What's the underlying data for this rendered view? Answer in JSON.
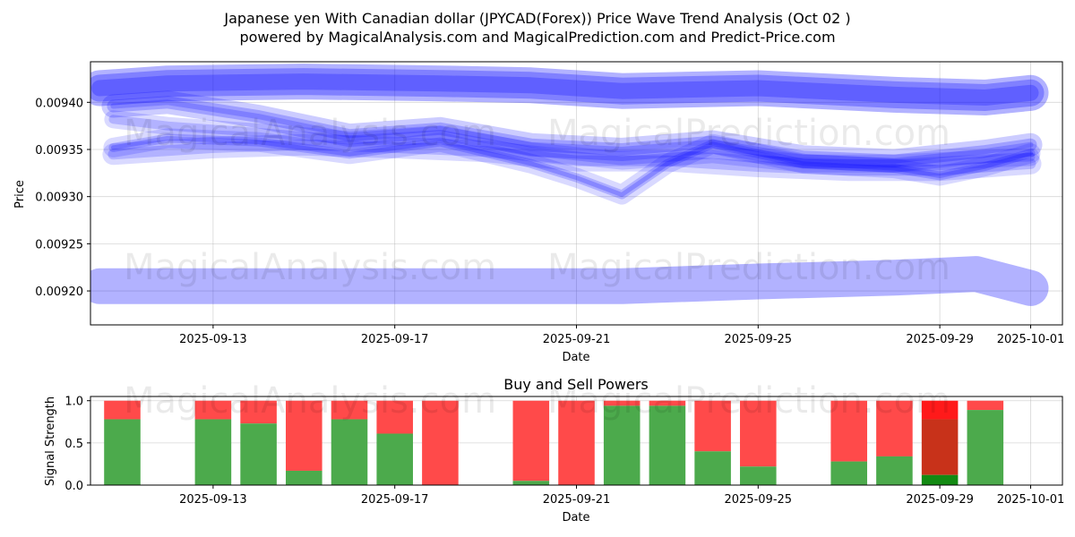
{
  "title_line1": "Japanese yen With Canadian dollar (JPYCAD(Forex)) Price Wave Trend Analysis (Oct 02 )",
  "title_line2": "powered by MagicalAnalysis.com and MagicalPrediction.com and Predict-Price.com",
  "watermarks": [
    "MagicalAnalysis.com",
    "MagicalPrediction.com"
  ],
  "chart_data": [
    {
      "type": "area",
      "xlabel": "Date",
      "ylabel": "Price",
      "xlim": [
        -0.7,
        20.7
      ],
      "ylim": [
        0.009164,
        0.009443
      ],
      "x_tick_labels": [
        {
          "day": 2,
          "label": "2025-09-13"
        },
        {
          "day": 6,
          "label": "2025-09-17"
        },
        {
          "day": 10,
          "label": "2025-09-21"
        },
        {
          "day": 14,
          "label": "2025-09-25"
        },
        {
          "day": 18,
          "label": "2025-09-29"
        },
        {
          "day": 20,
          "label": "2025-10-01"
        }
      ],
      "y_ticks": [
        {
          "value": 0.0092,
          "label": "0.00920"
        },
        {
          "value": 0.00925,
          "label": "0.00925"
        },
        {
          "value": 0.0093,
          "label": "0.00930"
        },
        {
          "value": 0.00935,
          "label": "0.00935"
        },
        {
          "value": 0.0094,
          "label": "0.00940"
        }
      ],
      "grid": true,
      "color": "#0000ff",
      "series": [
        {
          "name": "upper-band",
          "x": [
            -0.5,
            1,
            4,
            7,
            9,
            11,
            14,
            17,
            19,
            20
          ],
          "values": [
            0.009415,
            0.00942,
            0.009422,
            0.00942,
            0.009418,
            0.009412,
            0.009415,
            0.009408,
            0.009405,
            0.00941
          ]
        },
        {
          "name": "wave-1",
          "x": [
            -0.2,
            1,
            3,
            5,
            7,
            9,
            11,
            13,
            15,
            17,
            19,
            20
          ],
          "values": [
            0.009396,
            0.0094,
            0.009385,
            0.009365,
            0.009372,
            0.009355,
            0.00935,
            0.009358,
            0.009342,
            0.009338,
            0.009348,
            0.009355
          ]
        },
        {
          "name": "wave-2",
          "x": [
            -0.2,
            1,
            3,
            5,
            7,
            9,
            10,
            11,
            12,
            13,
            15,
            17,
            18,
            19,
            20
          ],
          "values": [
            0.009352,
            0.009362,
            0.009358,
            0.009345,
            0.009358,
            0.009335,
            0.00932,
            0.009302,
            0.009335,
            0.009356,
            0.009335,
            0.00933,
            0.009322,
            0.009332,
            0.009346
          ]
        },
        {
          "name": "wave-3",
          "x": [
            -0.2,
            1,
            3,
            5,
            7,
            9,
            11,
            13,
            15,
            17,
            19,
            20
          ],
          "values": [
            0.009382,
            0.009375,
            0.009368,
            0.00936,
            0.009366,
            0.009348,
            0.009338,
            0.009345,
            0.009335,
            0.009335,
            0.00934,
            0.009342
          ]
        },
        {
          "name": "wave-4",
          "x": [
            -0.2,
            2,
            4,
            6,
            8,
            10,
            12,
            14,
            16,
            18,
            20
          ],
          "values": [
            0.009345,
            0.009352,
            0.009355,
            0.009352,
            0.009348,
            0.009338,
            0.009338,
            0.009332,
            0.009328,
            0.009328,
            0.009335
          ]
        },
        {
          "name": "lower-band",
          "x": [
            -0.5,
            2,
            5,
            8,
            11,
            14,
            17,
            18.8,
            20
          ],
          "values": [
            0.009205,
            0.009205,
            0.009205,
            0.009205,
            0.009205,
            0.00921,
            0.009214,
            0.009218,
            0.009203
          ]
        }
      ]
    },
    {
      "type": "bar",
      "title": "Buy and Sell Powers",
      "xlabel": "Date",
      "ylabel": "Signal Strength",
      "ylim": [
        0,
        1.05
      ],
      "y_ticks": [
        {
          "value": 0,
          "label": "0.0"
        },
        {
          "value": 0.5,
          "label": "0.5"
        },
        {
          "value": 1,
          "label": "1.0"
        }
      ],
      "x_tick_labels": [
        {
          "day": 2,
          "label": "2025-09-13"
        },
        {
          "day": 6,
          "label": "2025-09-17"
        },
        {
          "day": 10,
          "label": "2025-09-21"
        },
        {
          "day": 14,
          "label": "2025-09-25"
        },
        {
          "day": 18,
          "label": "2025-09-29"
        },
        {
          "day": 20,
          "label": "2025-10-01"
        }
      ],
      "grid": true,
      "buy_color": "#4caa4c",
      "sell_color": "#ff4a4a",
      "highlight_buy_color": "#138a13",
      "highlight_sell_color": "#ff1a1a",
      "highlight_mid_color": "#c8321a",
      "bars": [
        {
          "day": 0,
          "buy": 0.78
        },
        {
          "day": 2,
          "buy": 0.78
        },
        {
          "day": 3,
          "buy": 0.73
        },
        {
          "day": 4,
          "buy": 0.17
        },
        {
          "day": 5,
          "buy": 0.78
        },
        {
          "day": 6,
          "buy": 0.61
        },
        {
          "day": 7,
          "buy": 0.0
        },
        {
          "day": 9,
          "buy": 0.05
        },
        {
          "day": 10,
          "buy": 0.0
        },
        {
          "day": 11,
          "buy": 0.94
        },
        {
          "day": 12,
          "buy": 0.94
        },
        {
          "day": 13,
          "buy": 0.4
        },
        {
          "day": 14,
          "buy": 0.22
        },
        {
          "day": 16,
          "buy": 0.28
        },
        {
          "day": 17,
          "buy": 0.34
        },
        {
          "day": 18,
          "buy": 0.12,
          "highlight": true,
          "mid_top": 0.78
        },
        {
          "day": 19,
          "buy": 0.89
        }
      ]
    }
  ]
}
